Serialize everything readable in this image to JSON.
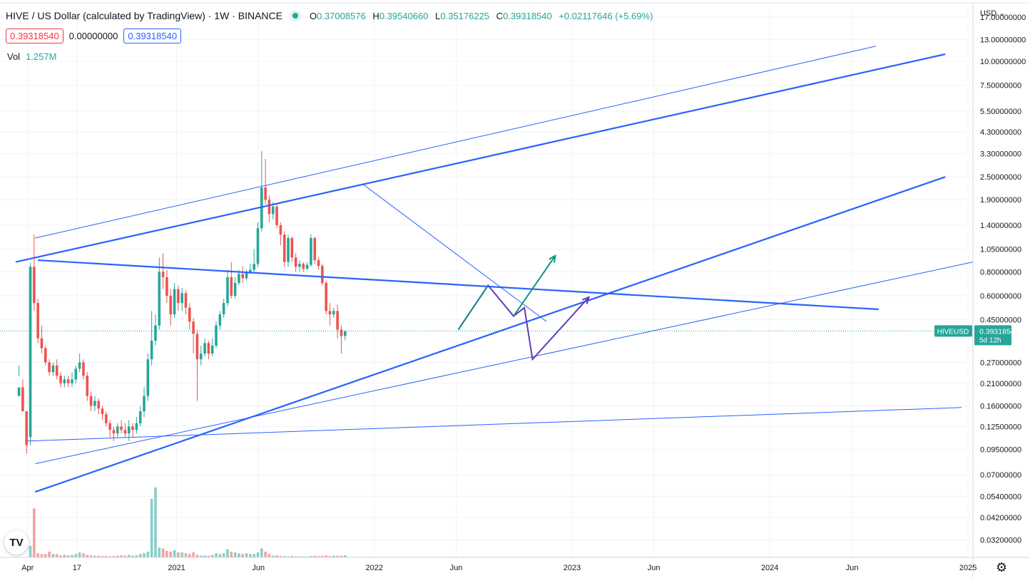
{
  "header": {
    "title": "HIVE / US Dollar (calculated by TradingView) · 1W · BINANCE",
    "ohlc": [
      {
        "label": "O",
        "value": "0.37008576"
      },
      {
        "label": "H",
        "value": "0.39540660"
      },
      {
        "label": "L",
        "value": "0.35176225"
      },
      {
        "label": "C",
        "value": "0.39318540"
      }
    ],
    "change": "+0.02117646 (+5.69%)",
    "boxes": {
      "bid": "0.39318540",
      "spread": "0.00000000",
      "ask": "0.39318540"
    },
    "volume_label": "Vol",
    "volume_value": "1.257M",
    "currency": "USD",
    "logo": "TV"
  },
  "colors": {
    "up": "#26a69a",
    "down": "#ef5350",
    "line": "#2962ff",
    "green_arrow": "#089981",
    "purple": "#673ab7",
    "grid": "#f0f3fa"
  },
  "icons": {
    "settings": "gear-icon",
    "logo": "tradingview-logo-icon",
    "status": "market-open-dot-icon"
  },
  "chart_data": {
    "type": "candlestick",
    "title": "HIVE / US Dollar (calculated by TradingView) · 1W · BINANCE",
    "yscale": "log",
    "ylim": [
      0.026,
      19.5
    ],
    "y_ticks": [
      {
        "label": "17.00000000",
        "v": 17
      },
      {
        "label": "13.00000000",
        "v": 13
      },
      {
        "label": "10.00000000",
        "v": 10
      },
      {
        "label": "7.50000000",
        "v": 7.5
      },
      {
        "label": "5.50000000",
        "v": 5.5
      },
      {
        "label": "4.30000000",
        "v": 4.3
      },
      {
        "label": "3.30000000",
        "v": 3.3
      },
      {
        "label": "2.50000000",
        "v": 2.5
      },
      {
        "label": "1.90000000",
        "v": 1.9
      },
      {
        "label": "1.40000000",
        "v": 1.4
      },
      {
        "label": "1.05000000",
        "v": 1.05
      },
      {
        "label": "0.80000000",
        "v": 0.8
      },
      {
        "label": "0.60000000",
        "v": 0.6
      },
      {
        "label": "0.45000000",
        "v": 0.45
      },
      {
        "label": "0.27000000",
        "v": 0.27
      },
      {
        "label": "0.21000000",
        "v": 0.21
      },
      {
        "label": "0.16000000",
        "v": 0.16
      },
      {
        "label": "0.12500000",
        "v": 0.125
      },
      {
        "label": "0.09500000",
        "v": 0.095
      },
      {
        "label": "0.07000000",
        "v": 0.07
      },
      {
        "label": "0.05400000",
        "v": 0.054
      },
      {
        "label": "0.04200000",
        "v": 0.042
      },
      {
        "label": "0.03200000",
        "v": 0.032
      }
    ],
    "x_ticks": [
      {
        "label": "Apr",
        "d": "2020-04-01"
      },
      {
        "label": "17",
        "d": "2020-07-01"
      },
      {
        "label": "2021",
        "d": "2021-01-01"
      },
      {
        "label": "Jun",
        "d": "2021-06-01"
      },
      {
        "label": "2022",
        "d": "2022-01-01"
      },
      {
        "label": "Jun",
        "d": "2022-06-01"
      },
      {
        "label": "2023",
        "d": "2023-01-01"
      },
      {
        "label": "Jun",
        "d": "2023-06-01"
      },
      {
        "label": "2024",
        "d": "2024-01-01"
      },
      {
        "label": "Jun",
        "d": "2024-06-01"
      },
      {
        "label": "2025",
        "d": "2025-01-01"
      }
    ],
    "xlim": [
      "2020-02-10",
      "2025-01-10"
    ],
    "price_tag": {
      "symbol": "HIVEUSD",
      "price": "0.39318540",
      "countdown": "5d 12h",
      "value": 0.3932
    },
    "candles": [
      [
        0.2,
        0.18,
        0.26,
        0.23
      ],
      [
        0.15,
        0.2,
        0.22,
        0.16
      ],
      [
        0.1,
        0.15,
        0.15,
        0.09
      ],
      [
        0.85,
        0.11,
        0.89,
        0.1
      ],
      [
        0.55,
        0.85,
        1.25,
        0.5
      ],
      [
        0.36,
        0.55,
        0.58,
        0.34
      ],
      [
        0.32,
        0.36,
        0.42,
        0.3
      ],
      [
        0.27,
        0.32,
        0.33,
        0.26
      ],
      [
        0.24,
        0.27,
        0.28,
        0.23
      ],
      [
        0.26,
        0.24,
        0.27,
        0.23
      ],
      [
        0.23,
        0.26,
        0.28,
        0.22
      ],
      [
        0.21,
        0.23,
        0.24,
        0.2
      ],
      [
        0.22,
        0.21,
        0.23,
        0.2
      ],
      [
        0.21,
        0.22,
        0.23,
        0.2
      ],
      [
        0.22,
        0.21,
        0.24,
        0.2
      ],
      [
        0.25,
        0.22,
        0.26,
        0.21
      ],
      [
        0.27,
        0.25,
        0.3,
        0.24
      ],
      [
        0.23,
        0.27,
        0.28,
        0.22
      ],
      [
        0.18,
        0.23,
        0.24,
        0.17
      ],
      [
        0.16,
        0.18,
        0.19,
        0.15
      ],
      [
        0.17,
        0.16,
        0.18,
        0.15
      ],
      [
        0.155,
        0.17,
        0.175,
        0.145
      ],
      [
        0.145,
        0.155,
        0.16,
        0.135
      ],
      [
        0.13,
        0.145,
        0.15,
        0.125
      ],
      [
        0.12,
        0.13,
        0.135,
        0.11
      ],
      [
        0.115,
        0.12,
        0.125,
        0.105
      ],
      [
        0.125,
        0.115,
        0.13,
        0.11
      ],
      [
        0.12,
        0.125,
        0.135,
        0.115
      ],
      [
        0.115,
        0.12,
        0.13,
        0.11
      ],
      [
        0.125,
        0.115,
        0.135,
        0.105
      ],
      [
        0.12,
        0.125,
        0.13,
        0.11
      ],
      [
        0.13,
        0.12,
        0.14,
        0.115
      ],
      [
        0.15,
        0.13,
        0.16,
        0.125
      ],
      [
        0.18,
        0.15,
        0.2,
        0.14
      ],
      [
        0.28,
        0.18,
        0.3,
        0.17
      ],
      [
        0.35,
        0.28,
        0.5,
        0.26
      ],
      [
        0.42,
        0.35,
        0.48,
        0.33
      ],
      [
        0.8,
        0.42,
        0.95,
        0.4
      ],
      [
        0.75,
        0.8,
        1.0,
        0.65
      ],
      [
        0.6,
        0.75,
        0.82,
        0.55
      ],
      [
        0.48,
        0.6,
        0.65,
        0.42
      ],
      [
        0.65,
        0.48,
        0.7,
        0.46
      ],
      [
        0.55,
        0.65,
        0.68,
        0.5
      ],
      [
        0.62,
        0.55,
        0.66,
        0.5
      ],
      [
        0.52,
        0.62,
        0.64,
        0.48
      ],
      [
        0.44,
        0.52,
        0.55,
        0.4
      ],
      [
        0.38,
        0.44,
        0.46,
        0.3
      ],
      [
        0.28,
        0.38,
        0.4,
        0.17
      ],
      [
        0.3,
        0.28,
        0.33,
        0.26
      ],
      [
        0.34,
        0.3,
        0.36,
        0.29
      ],
      [
        0.3,
        0.34,
        0.35,
        0.28
      ],
      [
        0.33,
        0.3,
        0.36,
        0.29
      ],
      [
        0.42,
        0.33,
        0.44,
        0.32
      ],
      [
        0.48,
        0.42,
        0.5,
        0.4
      ],
      [
        0.55,
        0.48,
        0.58,
        0.46
      ],
      [
        0.75,
        0.55,
        0.82,
        0.53
      ],
      [
        0.6,
        0.75,
        0.9,
        0.58
      ],
      [
        0.7,
        0.6,
        0.75,
        0.58
      ],
      [
        0.78,
        0.7,
        0.82,
        0.68
      ],
      [
        0.74,
        0.78,
        0.85,
        0.7
      ],
      [
        0.8,
        0.74,
        0.82,
        0.72
      ],
      [
        0.82,
        0.8,
        0.88,
        0.78
      ],
      [
        0.88,
        0.82,
        1.05,
        0.8
      ],
      [
        1.35,
        0.88,
        1.45,
        0.85
      ],
      [
        2.2,
        1.35,
        3.4,
        1.3
      ],
      [
        1.9,
        2.2,
        3.1,
        1.8
      ],
      [
        1.6,
        1.9,
        2.0,
        1.45
      ],
      [
        1.75,
        1.6,
        1.85,
        1.5
      ],
      [
        1.4,
        1.75,
        1.8,
        1.35
      ],
      [
        1.25,
        1.4,
        1.45,
        1.1
      ],
      [
        0.9,
        1.25,
        1.3,
        0.85
      ],
      [
        1.2,
        0.9,
        1.25,
        0.85
      ],
      [
        0.95,
        1.2,
        1.22,
        0.9
      ],
      [
        0.85,
        0.95,
        1.0,
        0.8
      ],
      [
        0.88,
        0.85,
        0.92,
        0.8
      ],
      [
        0.83,
        0.88,
        0.9,
        0.8
      ],
      [
        0.87,
        0.83,
        0.9,
        0.82
      ],
      [
        1.2,
        0.87,
        1.25,
        0.85
      ],
      [
        0.92,
        1.2,
        1.22,
        0.88
      ],
      [
        0.86,
        0.92,
        0.95,
        0.82
      ],
      [
        0.7,
        0.86,
        0.88,
        0.68
      ],
      [
        0.5,
        0.7,
        0.72,
        0.48
      ],
      [
        0.48,
        0.5,
        0.55,
        0.42
      ],
      [
        0.5,
        0.48,
        0.52,
        0.46
      ],
      [
        0.4,
        0.5,
        0.54,
        0.36
      ],
      [
        0.37,
        0.4,
        0.42,
        0.3
      ],
      [
        0.393,
        0.37,
        0.395,
        0.352
      ]
    ],
    "volume_scale": [
      0,
      7
    ],
    "volumes": [
      0.02,
      0.02,
      0.02,
      0.7,
      3.0,
      0.25,
      0.2,
      0.2,
      0.35,
      0.2,
      0.2,
      0.12,
      0.15,
      0.12,
      0.15,
      0.2,
      0.3,
      0.25,
      0.15,
      0.12,
      0.1,
      0.1,
      0.08,
      0.08,
      0.06,
      0.08,
      0.1,
      0.12,
      0.1,
      0.15,
      0.1,
      0.12,
      0.2,
      0.25,
      0.35,
      3.6,
      4.3,
      0.6,
      0.55,
      0.4,
      0.35,
      0.45,
      0.3,
      0.3,
      0.25,
      0.2,
      0.3,
      0.15,
      0.1,
      0.12,
      0.1,
      0.15,
      0.25,
      0.2,
      0.25,
      0.5,
      0.35,
      0.3,
      0.25,
      0.2,
      0.25,
      0.2,
      0.2,
      0.3,
      0.55,
      0.35,
      0.2,
      0.1,
      0.12,
      0.08,
      0.08,
      0.06,
      0.08,
      0.06,
      0.05,
      0.06,
      0.05,
      0.08,
      0.1,
      0.08,
      0.1,
      0.12,
      0.08,
      0.1,
      0.1,
      0.1,
      0.12
    ]
  },
  "drawings": {
    "lines": [
      {
        "p1": [
          "2020-04-15",
          1.2
        ],
        "p2": [
          "2024-07-15",
          12.0
        ],
        "w": 1
      },
      {
        "p1": [
          "2020-03-10",
          0.9
        ],
        "p2": [
          "2024-11-20",
          10.9
        ],
        "w": 2.2
      },
      {
        "p1": [
          "2020-04-20",
          0.92
        ],
        "p2": [
          "2024-07-20",
          0.51
        ],
        "w": 2.2
      },
      {
        "p1": [
          "2020-04-15",
          0.057
        ],
        "p2": [
          "2024-11-20",
          2.5
        ],
        "w": 2.2
      },
      {
        "p1": [
          "2020-04-15",
          0.08
        ],
        "p2": [
          "2025-01-10",
          0.9
        ],
        "w": 1
      },
      {
        "p1": [
          "2020-04-01",
          0.105
        ],
        "p2": [
          "2024-12-20",
          0.157
        ],
        "w": 1
      },
      {
        "p1": [
          "2021-12-10",
          2.3
        ],
        "p2": [
          "2022-11-15",
          0.44
        ],
        "w": 1
      }
    ],
    "path_main": [
      [
        "2022-06-05",
        0.4
      ],
      [
        "2022-07-30",
        0.68
      ],
      [
        "2022-09-15",
        0.47
      ],
      [
        "2022-10-05",
        0.52
      ],
      [
        "2022-10-20",
        0.28
      ],
      [
        "2023-02-01",
        0.59
      ]
    ],
    "path_alt": [
      [
        "2022-09-15",
        0.47
      ],
      [
        "2022-12-01",
        0.97
      ]
    ],
    "path_join": [
      [
        "2022-06-05",
        0.4
      ],
      [
        "2022-09-15",
        0.47
      ]
    ]
  }
}
